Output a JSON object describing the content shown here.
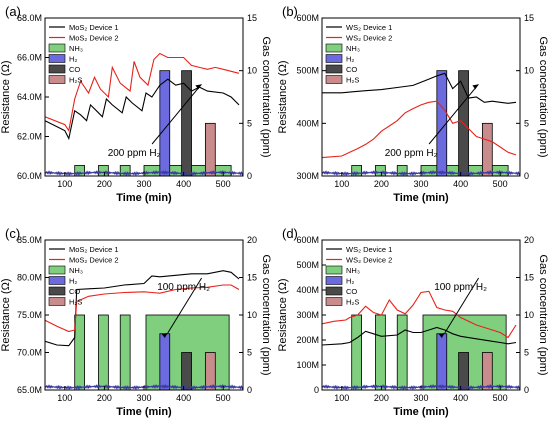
{
  "figure": {
    "colors": {
      "device1": "#000000",
      "device2": "#e8221a",
      "NH3": "#7fcf7f",
      "H2": "#6b6bdf",
      "CO": "#4a4a4a",
      "H2S": "#c98c8c",
      "baseline": "#3a3aa0"
    }
  },
  "chart_data": [
    {
      "panel": "(a)",
      "type": "line",
      "xlabel": "Time (min)",
      "ylabel": "Resistance (Ω)",
      "y2label": "Gas concentration (ppm)",
      "xlim": [
        50,
        550
      ],
      "xticks": [
        100,
        200,
        300,
        400,
        500
      ],
      "ylim": [
        60.0,
        68.0
      ],
      "yticks": [
        60.0,
        62.0,
        64.0,
        66.0,
        68.0
      ],
      "ytick_labels": [
        "60.0M",
        "62.0M",
        "64.0M",
        "66.0M",
        "68.0M"
      ],
      "y2lim": [
        0,
        15
      ],
      "y2ticks": [
        0,
        5,
        10,
        15
      ],
      "legend": [
        "MoS₂ Device 1",
        "MoS₂ Device 2",
        "NH₃",
        "H₂",
        "CO",
        "H₂S"
      ],
      "annotation": "200 ppm H₂",
      "series": [
        {
          "name": "MoS₂ Device 1",
          "x": [
            50,
            100,
            110,
            125,
            140,
            155,
            165,
            180,
            195,
            205,
            220,
            245,
            255,
            270,
            295,
            305,
            320,
            340,
            360,
            380,
            400,
            420,
            440,
            460,
            500,
            520,
            540
          ],
          "y": [
            62.8,
            62.3,
            61.9,
            63.3,
            63.1,
            62.8,
            63.6,
            63.3,
            63.0,
            63.9,
            63.6,
            63.2,
            64.0,
            63.7,
            63.3,
            64.2,
            64.0,
            64.6,
            64.9,
            64.6,
            64.7,
            64.3,
            64.5,
            64.3,
            64.2,
            64.0,
            63.6
          ]
        },
        {
          "name": "MoS₂ Device 2",
          "x": [
            50,
            100,
            110,
            125,
            140,
            160,
            175,
            190,
            210,
            220,
            240,
            265,
            275,
            290,
            310,
            325,
            340,
            360,
            400,
            420,
            440,
            460,
            480,
            500,
            520,
            540
          ],
          "y": [
            63.0,
            62.6,
            62.3,
            63.9,
            64.8,
            64.2,
            65.0,
            64.4,
            64.0,
            65.5,
            64.7,
            64.3,
            65.8,
            65.0,
            64.6,
            65.9,
            66.2,
            66.0,
            66.0,
            65.6,
            65.5,
            65.4,
            65.5,
            65.4,
            65.3,
            65.2
          ]
        }
      ],
      "gas_pulses": [
        {
          "gas": "NH₃",
          "start": 125,
          "end": 150,
          "ppm": 1
        },
        {
          "gas": "NH₃",
          "start": 185,
          "end": 210,
          "ppm": 1
        },
        {
          "gas": "NH₃",
          "start": 240,
          "end": 265,
          "ppm": 1
        },
        {
          "gas": "NH₃",
          "start": 300,
          "end": 520,
          "ppm": 1
        },
        {
          "gas": "H₂",
          "start": 340,
          "end": 365,
          "ppm": 10
        },
        {
          "gas": "CO",
          "start": 395,
          "end": 420,
          "ppm": 10
        },
        {
          "gas": "H₂S",
          "start": 455,
          "end": 480,
          "ppm": 5
        }
      ]
    },
    {
      "panel": "(b)",
      "type": "line",
      "xlabel": "Time (min)",
      "ylabel": "Resistance (Ω)",
      "y2label": "Gas concentration (ppm)",
      "xlim": [
        50,
        550
      ],
      "xticks": [
        100,
        200,
        300,
        400,
        500
      ],
      "ylim": [
        300,
        600
      ],
      "yticks": [
        300,
        400,
        500,
        600
      ],
      "ytick_labels": [
        "300M",
        "400M",
        "500M",
        "600M"
      ],
      "y2lim": [
        0,
        15
      ],
      "y2ticks": [
        0,
        5,
        10,
        15
      ],
      "legend": [
        "WS₂ Device 1",
        "WS₂ Device 2",
        "NH₃",
        "H₂",
        "CO",
        "H₂S"
      ],
      "annotation": "200 ppm H₂",
      "series": [
        {
          "name": "WS₂ Device 1",
          "x": [
            50,
            100,
            130,
            160,
            200,
            240,
            280,
            300,
            320,
            340,
            360,
            380,
            400,
            420,
            440,
            460,
            480,
            500,
            520,
            540
          ],
          "y": [
            458,
            458,
            460,
            462,
            464,
            468,
            472,
            478,
            484,
            490,
            495,
            466,
            480,
            448,
            450,
            440,
            442,
            440,
            438,
            440
          ]
        },
        {
          "name": "WS₂ Device 2",
          "x": [
            50,
            100,
            120,
            140,
            160,
            180,
            200,
            220,
            240,
            260,
            280,
            300,
            320,
            340,
            360,
            380,
            400,
            420,
            440,
            460,
            480,
            500,
            520,
            540
          ],
          "y": [
            335,
            338,
            345,
            352,
            360,
            370,
            385,
            395,
            405,
            420,
            428,
            435,
            440,
            442,
            425,
            400,
            405,
            390,
            375,
            370,
            365,
            355,
            345,
            340
          ]
        }
      ],
      "gas_pulses": [
        {
          "gas": "NH₃",
          "start": 125,
          "end": 150,
          "ppm": 1
        },
        {
          "gas": "NH₃",
          "start": 185,
          "end": 210,
          "ppm": 1
        },
        {
          "gas": "NH₃",
          "start": 240,
          "end": 265,
          "ppm": 1
        },
        {
          "gas": "NH₃",
          "start": 300,
          "end": 520,
          "ppm": 1
        },
        {
          "gas": "H₂",
          "start": 340,
          "end": 365,
          "ppm": 10
        },
        {
          "gas": "CO",
          "start": 395,
          "end": 420,
          "ppm": 10
        },
        {
          "gas": "H₂S",
          "start": 455,
          "end": 480,
          "ppm": 5
        }
      ]
    },
    {
      "panel": "(c)",
      "type": "line",
      "xlabel": "Time (min)",
      "ylabel": "Resistance (Ω)",
      "y2label": "Gas concentration (ppm)",
      "xlim": [
        50,
        550
      ],
      "xticks": [
        100,
        200,
        300,
        400,
        500
      ],
      "ylim": [
        65.0,
        85.0
      ],
      "yticks": [
        65.0,
        70.0,
        75.0,
        80.0,
        85.0
      ],
      "ytick_labels": [
        "65.0M",
        "70.0M",
        "75.0M",
        "80.0M",
        "85.0M"
      ],
      "y2lim": [
        0,
        20
      ],
      "y2ticks": [
        0,
        5,
        10,
        15,
        20
      ],
      "legend": [
        "MoS₂ Device 1",
        "MoS₂ Device 2",
        "NH₃",
        "H₂",
        "CO",
        "H₂S"
      ],
      "annotation": "100 ppm H₂",
      "series": [
        {
          "name": "MoS₂ Device 1",
          "x": [
            50,
            80,
            110,
            125,
            130,
            160,
            200,
            250,
            300,
            320,
            340,
            380,
            420,
            460,
            500,
            520,
            540
          ],
          "y": [
            71.5,
            71.0,
            70.9,
            72.0,
            78.4,
            78.5,
            78.6,
            79.0,
            79.2,
            80.2,
            80.1,
            80.3,
            80.5,
            80.5,
            80.9,
            80.7,
            79.8
          ]
        },
        {
          "name": "MoS₂ Device 2",
          "x": [
            50,
            80,
            110,
            125,
            130,
            160,
            200,
            250,
            300,
            320,
            340,
            380,
            420,
            460,
            500,
            520,
            540
          ],
          "y": [
            74.3,
            73.5,
            72.8,
            73.0,
            76.8,
            77.5,
            77.8,
            78.0,
            78.1,
            78.0,
            77.9,
            78.4,
            78.6,
            78.7,
            79.0,
            79.0,
            78.4
          ]
        }
      ],
      "gas_pulses": [
        {
          "gas": "NH₃",
          "start": 125,
          "end": 150,
          "ppm": 10
        },
        {
          "gas": "NH₃",
          "start": 185,
          "end": 210,
          "ppm": 10
        },
        {
          "gas": "NH₃",
          "start": 240,
          "end": 265,
          "ppm": 10
        },
        {
          "gas": "NH₃",
          "start": 305,
          "end": 515,
          "ppm": 10
        },
        {
          "gas": "H₂",
          "start": 340,
          "end": 365,
          "ppm": 7.5
        },
        {
          "gas": "CO",
          "start": 395,
          "end": 420,
          "ppm": 5
        },
        {
          "gas": "H₂S",
          "start": 455,
          "end": 480,
          "ppm": 5
        }
      ]
    },
    {
      "panel": "(d)",
      "type": "line",
      "xlabel": "Time (min)",
      "ylabel": "Resistance (Ω)",
      "y2label": "Gas concentration (ppm)",
      "xlim": [
        50,
        550
      ],
      "xticks": [
        100,
        200,
        300,
        400,
        500
      ],
      "ylim": [
        0,
        600
      ],
      "yticks": [
        0,
        100,
        200,
        300,
        400,
        500,
        600
      ],
      "ytick_labels": [
        "0",
        "100M",
        "200M",
        "300M",
        "400M",
        "500M",
        "600M"
      ],
      "y2lim": [
        0,
        20
      ],
      "y2ticks": [
        0,
        5,
        10,
        15,
        20
      ],
      "legend": [
        "WS₂ Device 1",
        "WS₂ Device 2",
        "NH₃",
        "H₂",
        "CO",
        "H₂S"
      ],
      "annotation": "100 ppm H₂",
      "series": [
        {
          "name": "WS₂ Device 1",
          "x": [
            50,
            100,
            120,
            140,
            160,
            180,
            200,
            240,
            260,
            280,
            300,
            320,
            340,
            360,
            380,
            400,
            440,
            480,
            500,
            520,
            540
          ],
          "y": [
            180,
            185,
            190,
            210,
            235,
            225,
            215,
            220,
            240,
            230,
            230,
            240,
            250,
            240,
            225,
            215,
            205,
            195,
            190,
            185,
            190
          ]
        },
        {
          "name": "WS₂ Device 2",
          "x": [
            50,
            80,
            110,
            120,
            140,
            160,
            180,
            200,
            220,
            240,
            260,
            280,
            300,
            320,
            340,
            360,
            380,
            400,
            440,
            480,
            500,
            520,
            540
          ],
          "y": [
            265,
            275,
            280,
            290,
            300,
            335,
            310,
            300,
            360,
            320,
            305,
            340,
            390,
            395,
            330,
            320,
            315,
            290,
            260,
            240,
            230,
            210,
            260
          ]
        }
      ],
      "gas_pulses": [
        {
          "gas": "NH₃",
          "start": 125,
          "end": 150,
          "ppm": 10
        },
        {
          "gas": "NH₃",
          "start": 185,
          "end": 210,
          "ppm": 10
        },
        {
          "gas": "NH₃",
          "start": 240,
          "end": 265,
          "ppm": 10
        },
        {
          "gas": "NH₃",
          "start": 305,
          "end": 515,
          "ppm": 10
        },
        {
          "gas": "H₂",
          "start": 340,
          "end": 365,
          "ppm": 7.5
        },
        {
          "gas": "CO",
          "start": 395,
          "end": 420,
          "ppm": 5
        },
        {
          "gas": "H₂S",
          "start": 455,
          "end": 480,
          "ppm": 5
        }
      ]
    }
  ]
}
